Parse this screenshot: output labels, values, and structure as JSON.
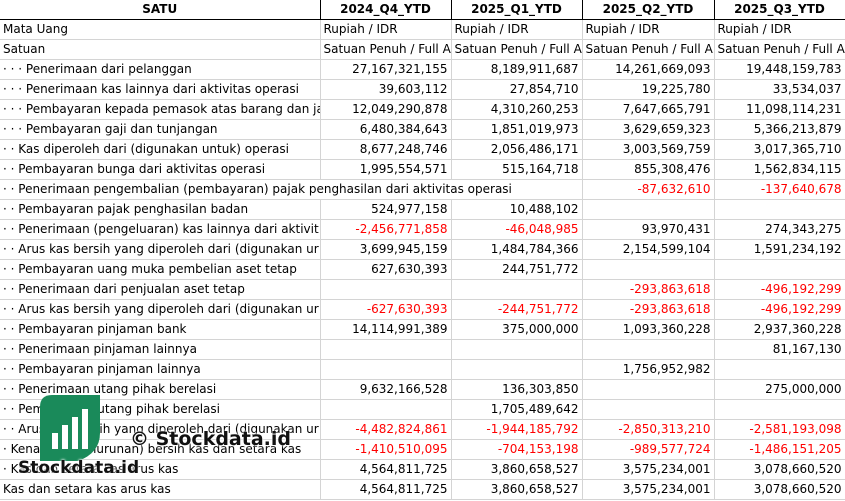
{
  "header": {
    "col0": "SATU",
    "cols": [
      "2024_Q4_YTD",
      "2025_Q1_YTD",
      "2025_Q2_YTD",
      "2025_Q3_YTD"
    ]
  },
  "meta_rows": [
    {
      "label": "Mata Uang",
      "values": [
        "Rupiah / IDR",
        "Rupiah / IDR",
        "Rupiah / IDR",
        "Rupiah / IDR"
      ]
    },
    {
      "label": "Satuan",
      "values": [
        "Satuan Penuh / Full A",
        "Satuan Penuh / Full A",
        "Satuan Penuh / Full A",
        "Satuan Penuh / Full A"
      ]
    }
  ],
  "rows": [
    {
      "label": "· · · Penerimaan dari pelanggan",
      "values": [
        "27,167,321,155",
        "8,189,911,687",
        "14,261,669,093",
        "19,448,159,783"
      ]
    },
    {
      "label": "· · · Penerimaan kas lainnya dari aktivitas operasi",
      "values": [
        "39,603,112",
        "27,854,710",
        "19,225,780",
        "33,534,037"
      ]
    },
    {
      "label": "· · · Pembayaran kepada pemasok atas barang dan ja",
      "values": [
        "12,049,290,878",
        "4,310,260,253",
        "7,647,665,791",
        "11,098,114,231"
      ]
    },
    {
      "label": "· · · Pembayaran gaji dan tunjangan",
      "values": [
        "6,480,384,643",
        "1,851,019,973",
        "3,629,659,323",
        "5,366,213,879"
      ]
    },
    {
      "label": "· · Kas diperoleh dari (digunakan untuk) operasi",
      "values": [
        "8,677,248,746",
        "2,056,486,171",
        "3,003,569,759",
        "3,017,365,710"
      ]
    },
    {
      "label": "· · Pembayaran bunga dari aktivitas operasi",
      "values": [
        "1,995,554,571",
        "515,164,718",
        "855,308,476",
        "1,562,834,115"
      ]
    },
    {
      "label": "· · Penerimaan pengembalian (pembayaran) pajak penghasilan dari aktivitas operasi",
      "values": [
        "",
        "",
        "-87,632,610",
        "-137,640,678"
      ],
      "overflow": true
    },
    {
      "label": "· · Pembayaran pajak penghasilan badan",
      "values": [
        "524,977,158",
        "10,488,102",
        "",
        ""
      ]
    },
    {
      "label": "· · Penerimaan (pengeluaran) kas lainnya dari aktivit",
      "values": [
        "-2,456,771,858",
        "-46,048,985",
        "93,970,431",
        "274,343,275"
      ]
    },
    {
      "label": "· · Arus kas bersih yang diperoleh dari (digunakan ur",
      "values": [
        "3,699,945,159",
        "1,484,784,366",
        "2,154,599,104",
        "1,591,234,192"
      ]
    },
    {
      "label": "· · Pembayaran uang muka pembelian aset tetap",
      "values": [
        "627,630,393",
        "244,751,772",
        "",
        ""
      ]
    },
    {
      "label": "· · Penerimaan dari penjualan aset tetap",
      "values": [
        "",
        "",
        "-293,863,618",
        "-496,192,299"
      ]
    },
    {
      "label": "· · Arus kas bersih yang diperoleh dari (digunakan ur",
      "values": [
        "-627,630,393",
        "-244,751,772",
        "-293,863,618",
        "-496,192,299"
      ]
    },
    {
      "label": "· · Pembayaran pinjaman bank",
      "values": [
        "14,114,991,389",
        "375,000,000",
        "1,093,360,228",
        "2,937,360,228"
      ]
    },
    {
      "label": "· · Penerimaan pinjaman lainnya",
      "values": [
        "",
        "",
        "",
        "81,167,130"
      ]
    },
    {
      "label": "· · Pembayaran pinjaman lainnya",
      "values": [
        "",
        "",
        "1,756,952,982",
        ""
      ]
    },
    {
      "label": "· · Penerimaan utang pihak berelasi",
      "values": [
        "9,632,166,528",
        "136,303,850",
        "",
        "275,000,000"
      ]
    },
    {
      "label": "· · Pembayaran utang pihak berelasi",
      "values": [
        "",
        "1,705,489,642",
        "",
        ""
      ]
    },
    {
      "label": "· · Arus kas bersih yang diperoleh dari (digunakan ur",
      "values": [
        "-4,482,824,861",
        "-1,944,185,792",
        "-2,850,313,210",
        "-2,581,193,098"
      ]
    },
    {
      "label": "· Kenaikan (penurunan) bersih kas dan setara kas",
      "values": [
        "-1,410,510,095",
        "-704,153,198",
        "-989,577,724",
        "-1,486,151,205"
      ]
    },
    {
      "label": "· Kas dan setara kas arus kas",
      "values": [
        "4,564,811,725",
        "3,860,658,527",
        "3,575,234,001",
        "3,078,660,520"
      ]
    },
    {
      "label": "Kas dan setara kas arus kas",
      "values": [
        "4,564,811,725",
        "3,860,658,527",
        "3,575,234,001",
        "3,078,660,520"
      ]
    }
  ],
  "watermark": {
    "copyright": "© Stockdata.id",
    "brand": "Stockdata.id",
    "logo_icon": "bar-chart-logo-icon",
    "logo_color": "#1a8a5a"
  },
  "colors": {
    "negative": "#ff0000",
    "grid": "#d4d4d4"
  }
}
